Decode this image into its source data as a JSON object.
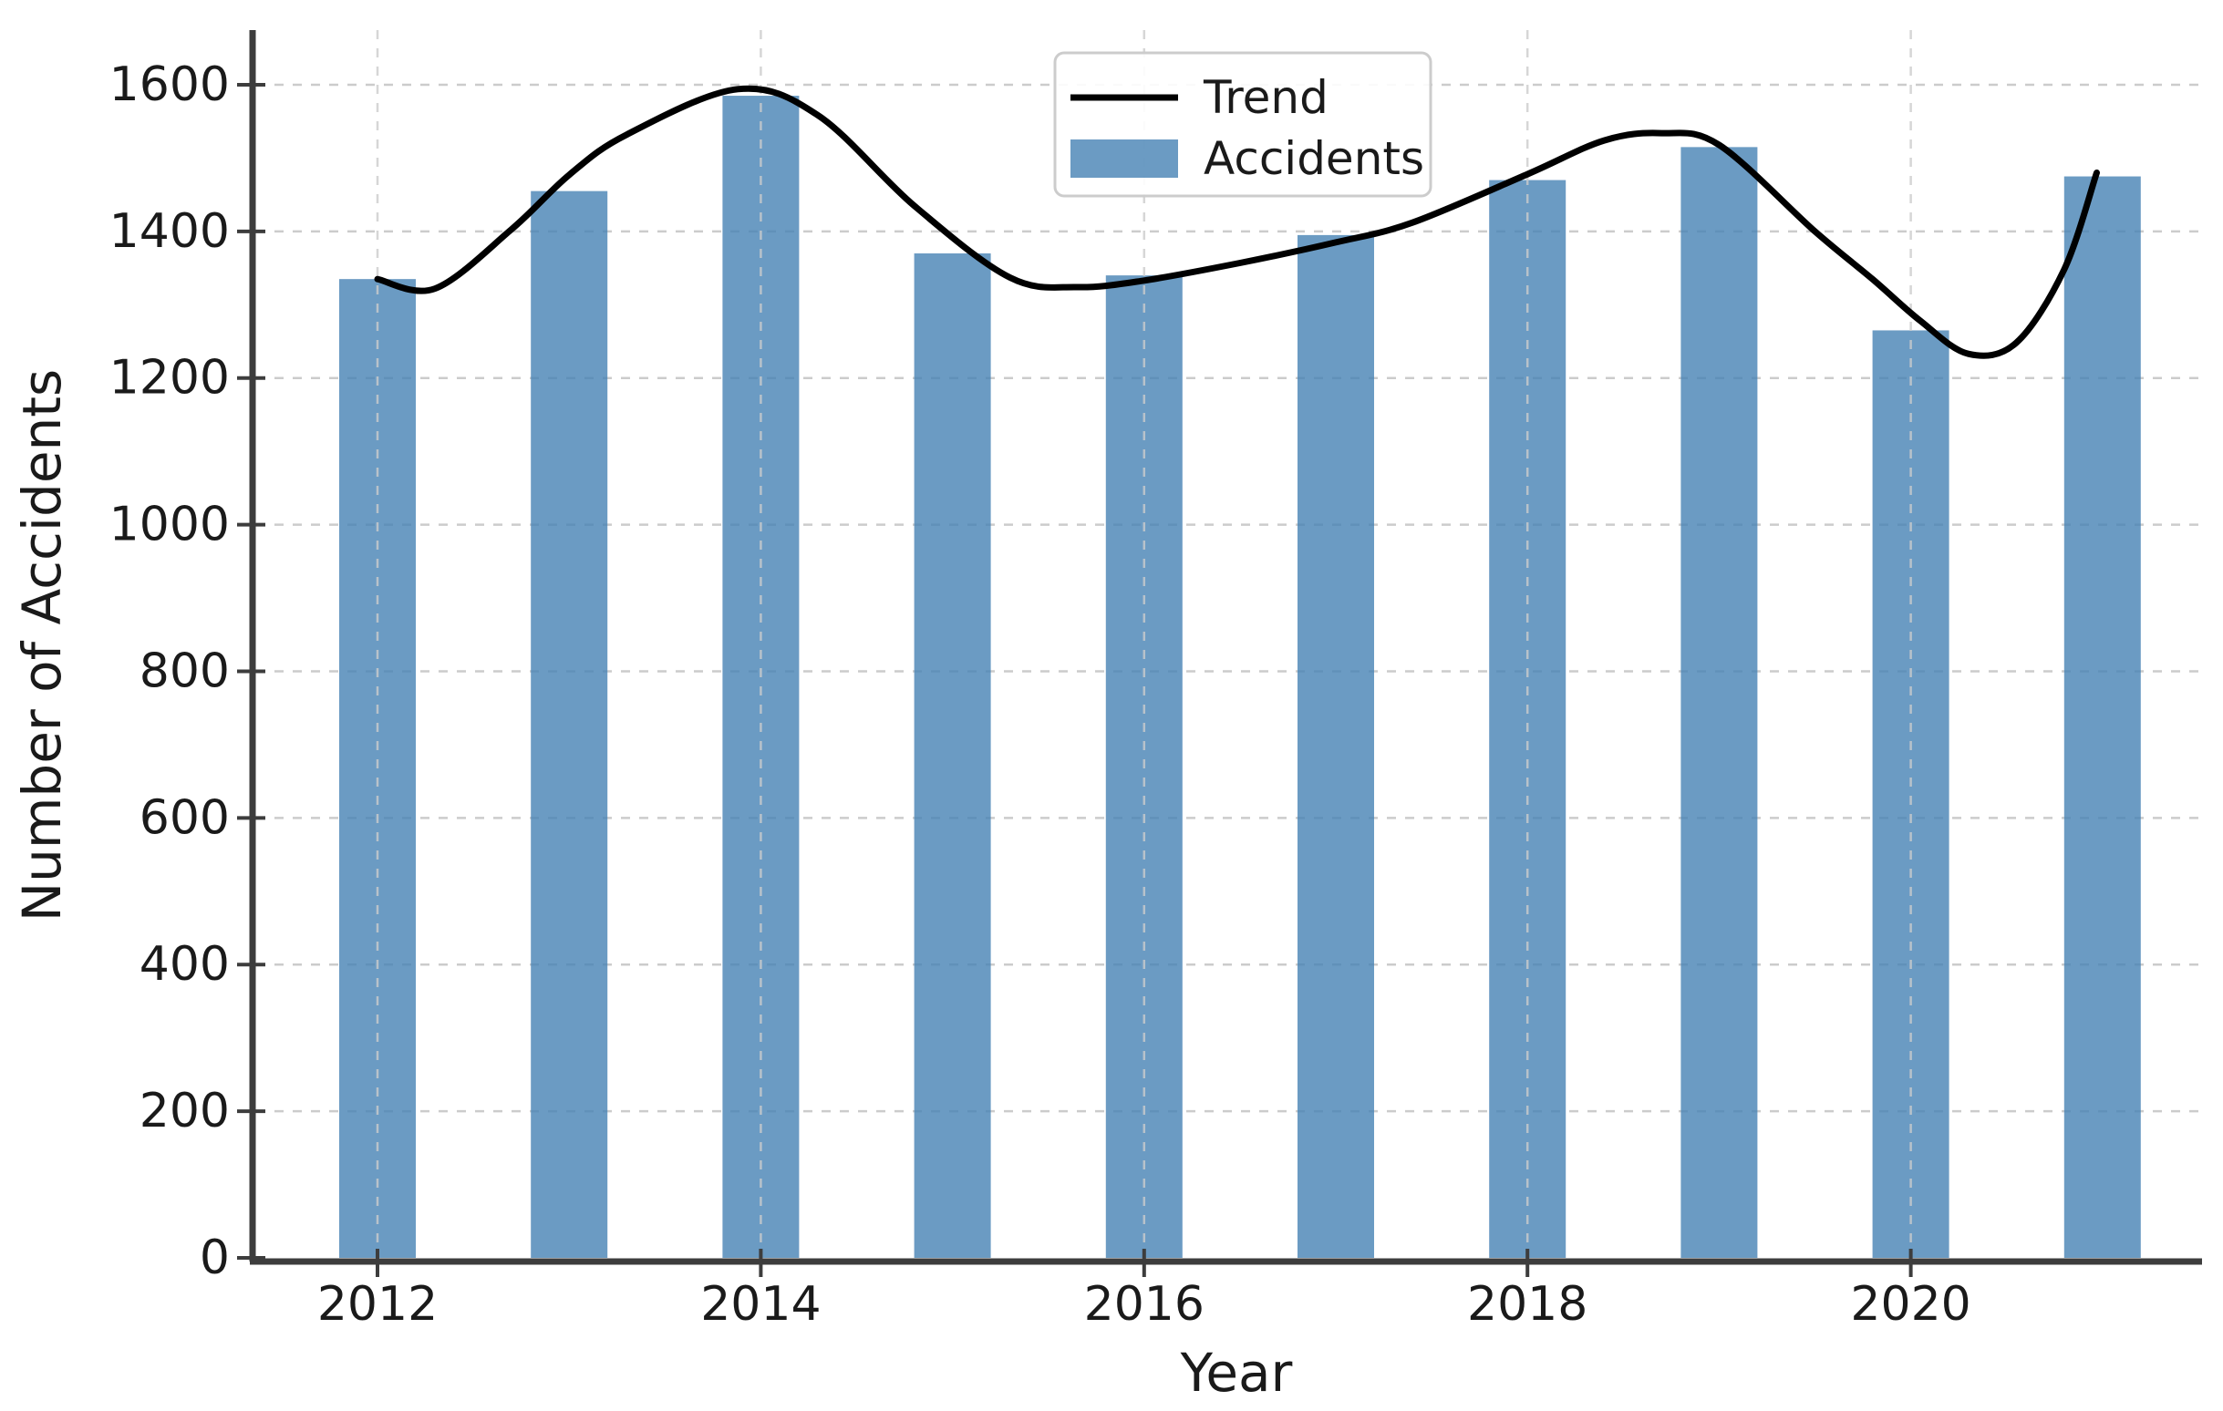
{
  "chart_data": {
    "type": "bar+line",
    "title": "",
    "xlabel": "Year",
    "ylabel": "Number of Accidents",
    "categories": [
      2012,
      2013,
      2014,
      2015,
      2016,
      2017,
      2018,
      2019,
      2020,
      2021
    ],
    "series": [
      {
        "name": "Accidents",
        "type": "bar",
        "color": "#4682b4",
        "opacity": 0.8,
        "values": [
          1335,
          1455,
          1585,
          1370,
          1340,
          1395,
          1470,
          1515,
          1265,
          1475
        ]
      },
      {
        "name": "Trend",
        "type": "line",
        "color": "#000000",
        "points": [
          [
            2012.0,
            1335
          ],
          [
            2012.3,
            1322
          ],
          [
            2012.7,
            1403
          ],
          [
            2013.0,
            1477
          ],
          [
            2013.3,
            1532
          ],
          [
            2013.88,
            1594
          ],
          [
            2014.3,
            1558
          ],
          [
            2014.8,
            1435
          ],
          [
            2015.3,
            1337
          ],
          [
            2015.65,
            1324
          ],
          [
            2016.0,
            1333
          ],
          [
            2016.5,
            1357
          ],
          [
            2017.0,
            1385
          ],
          [
            2017.4,
            1412
          ],
          [
            2018.0,
            1478
          ],
          [
            2018.4,
            1524
          ],
          [
            2018.7,
            1534
          ],
          [
            2019.0,
            1518
          ],
          [
            2019.5,
            1400
          ],
          [
            2019.8,
            1335
          ],
          [
            2020.05,
            1278
          ],
          [
            2020.3,
            1233
          ],
          [
            2020.55,
            1248
          ],
          [
            2020.8,
            1348
          ],
          [
            2020.97,
            1480
          ]
        ]
      }
    ],
    "y_ticks": [
      0,
      200,
      400,
      600,
      800,
      1000,
      1200,
      1400,
      1600
    ],
    "x_ticks": [
      2012,
      2014,
      2016,
      2018,
      2020
    ],
    "ylim": [
      0,
      1680
    ],
    "grid": {
      "visible": true,
      "style": "dashed",
      "color": "#cccccc"
    },
    "legend": {
      "position": "upper center",
      "entries": [
        "Trend",
        "Accidents"
      ]
    },
    "axis_color": "#3d3d3d",
    "text_color": "#1a1a1a",
    "background": "#ffffff"
  },
  "labels": {
    "xlabel": "Year",
    "ylabel": "Number of Accidents",
    "legend_trend": "Trend",
    "legend_accidents": "Accidents"
  }
}
